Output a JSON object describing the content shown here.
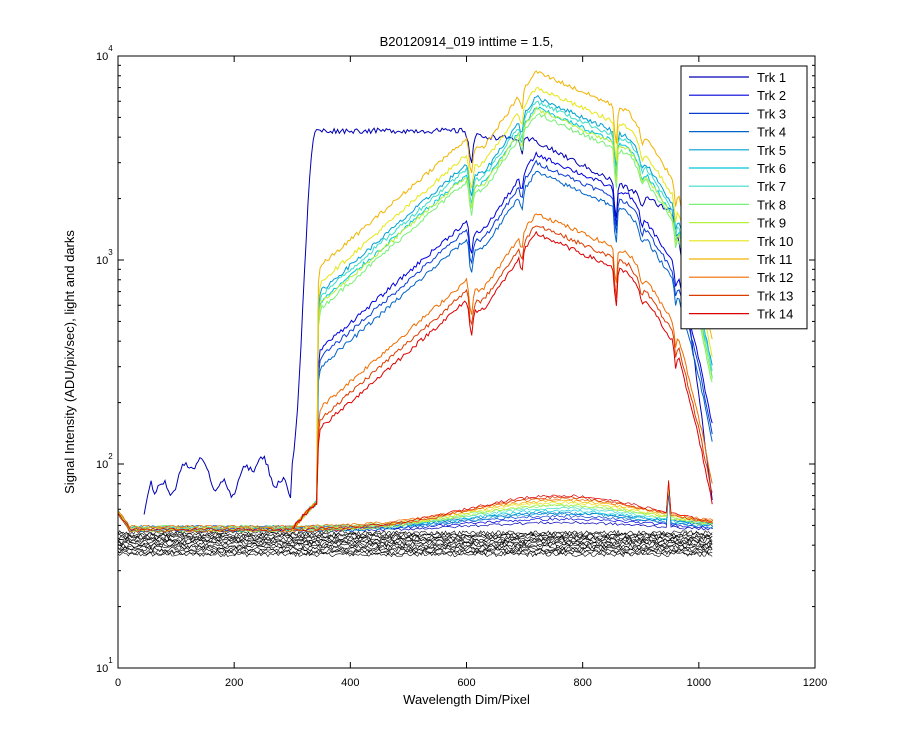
{
  "chart_data": {
    "type": "line",
    "title": "B20120914_019 inttime = 1.5,",
    "xlabel": "Wavelength Dim/Pixel",
    "ylabel": "Signal Intensity (ADU/pix/sec), light and darks",
    "xlim": [
      0,
      1200
    ],
    "ylim": [
      10,
      10000
    ],
    "yscale": "log",
    "xticks": [
      "0",
      "200",
      "400",
      "600",
      "800",
      "1000",
      "1200"
    ],
    "yticks": [
      {
        "base": "10",
        "exp": "1",
        "value": 10
      },
      {
        "base": "10",
        "exp": "2",
        "value": 100
      },
      {
        "base": "10",
        "exp": "3",
        "value": 1000
      },
      {
        "base": "10",
        "exp": "4",
        "value": 10000
      }
    ],
    "grid": false,
    "legend_position": "top-right",
    "series": [
      {
        "name": "Trk 1",
        "color": "#0000b4",
        "kind": "step",
        "peak": 4300
      },
      {
        "name": "Trk 2",
        "color": "#0000dc",
        "kind": "group_a",
        "peak": 3300
      },
      {
        "name": "Trk 3",
        "color": "#0a3cd2",
        "kind": "group_a",
        "peak": 3000
      },
      {
        "name": "Trk 4",
        "color": "#0064c8",
        "kind": "group_a",
        "peak": 2700
      },
      {
        "name": "Trk 5",
        "color": "#00a0d2",
        "kind": "group_b",
        "peak": 6300
      },
      {
        "name": "Trk 6",
        "color": "#00c8dc",
        "kind": "group_b",
        "peak": 5600
      },
      {
        "name": "Trk 7",
        "color": "#3cdcc8",
        "kind": "group_b",
        "peak": 6000
      },
      {
        "name": "Trk 8",
        "color": "#78f078",
        "kind": "group_b",
        "peak": 5200
      },
      {
        "name": "Trk 9",
        "color": "#b4f03c",
        "kind": "group_b",
        "peak": 5500
      },
      {
        "name": "Trk 10",
        "color": "#e6e614",
        "kind": "group_b",
        "peak": 7000
      },
      {
        "name": "Trk 11",
        "color": "#f0b400",
        "kind": "group_b",
        "peak": 8400
      },
      {
        "name": "Trk 12",
        "color": "#f06e00",
        "kind": "group_c",
        "peak": 1700
      },
      {
        "name": "Trk 13",
        "color": "#dc3c00",
        "kind": "group_c",
        "peak": 1500
      },
      {
        "name": "Trk 14",
        "color": "#dc0000",
        "kind": "group_c",
        "peak": 1350
      }
    ],
    "darks": {
      "color": "#000000",
      "level_min": 36,
      "level_max": 46,
      "count": 14,
      "x_end": 1025
    },
    "dark_lights_peak_range": [
      48,
      70
    ]
  }
}
